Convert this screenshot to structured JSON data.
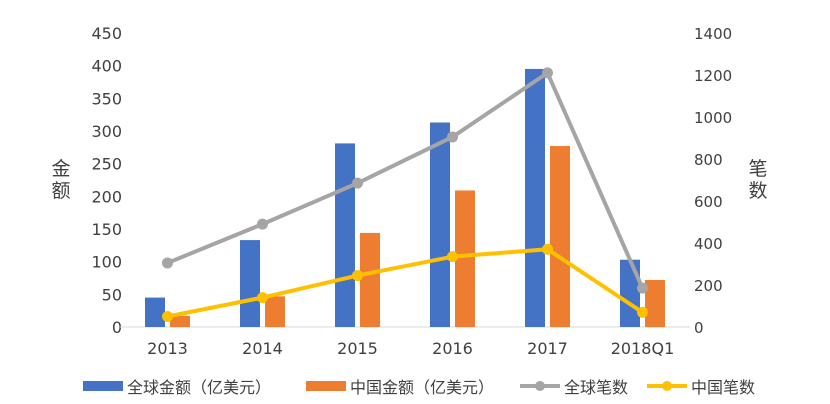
{
  "chart_data": {
    "type": "bar",
    "categories": [
      "2013",
      "2014",
      "2015",
      "2016",
      "2017",
      "2018Q1"
    ],
    "series": [
      {
        "name": "全球金额（亿美元）",
        "kind": "bar",
        "axis": "left",
        "color": "#4472C4",
        "values": [
          45,
          133,
          281,
          313,
          395,
          103
        ]
      },
      {
        "name": "中国金额（亿美元）",
        "kind": "bar",
        "axis": "left",
        "color": "#ED7D31",
        "values": [
          17,
          47,
          144,
          209,
          277,
          72
        ]
      },
      {
        "name": "全球笔数",
        "kind": "line",
        "axis": "right",
        "color": "#A5A5A5",
        "values": [
          305,
          490,
          685,
          905,
          1210,
          185
        ]
      },
      {
        "name": "中国笔数",
        "kind": "line",
        "axis": "right",
        "color": "#FFC000",
        "values": [
          50,
          140,
          245,
          335,
          370,
          70
        ]
      }
    ],
    "ylabel": "金额",
    "y2label": "笔数",
    "ylim": [
      0,
      450
    ],
    "yticks": [
      "0",
      "50",
      "100",
      "150",
      "200",
      "250",
      "300",
      "350",
      "400",
      "450"
    ],
    "y2lim": [
      0,
      1400
    ],
    "y2ticks": [
      "0",
      "200",
      "400",
      "600",
      "800",
      "1000",
      "1200",
      "1400"
    ],
    "grid": false,
    "legend_position": "bottom"
  }
}
